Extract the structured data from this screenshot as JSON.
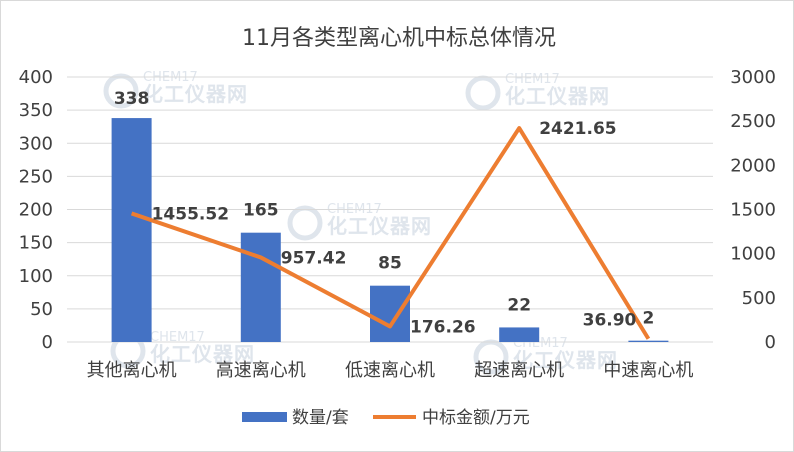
{
  "chart_data": {
    "type": "bar+line",
    "title": "11月各类型离心机中标总体情况",
    "categories": [
      "其他离心机",
      "高速离心机",
      "低速离心机",
      "超速离心机",
      "中速离心机"
    ],
    "series": [
      {
        "name": "数量/套",
        "type": "bar",
        "axis": "left",
        "color": "#4472c4",
        "values": [
          338,
          165,
          85,
          22,
          2
        ],
        "labels": [
          "338",
          "165",
          "85",
          "22",
          "2"
        ]
      },
      {
        "name": "中标金额/万元",
        "type": "line",
        "axis": "right",
        "color": "#ed7d31",
        "values": [
          1455.52,
          957.42,
          176.26,
          2421.65,
          36.9
        ],
        "labels": [
          "1455.52",
          "957.42",
          "176.26",
          "2421.65",
          "36.90"
        ]
      }
    ],
    "y_left": {
      "min": 0,
      "max": 400,
      "ticks": [
        "400",
        "350",
        "300",
        "250",
        "200",
        "150",
        "100",
        "50",
        "0"
      ]
    },
    "y_right": {
      "min": 0,
      "max": 3000,
      "ticks": [
        "3000",
        "2500",
        "2000",
        "1500",
        "1000",
        "500",
        "0"
      ]
    },
    "grid": true,
    "legend_position": "bottom"
  },
  "watermark": {
    "en": "CHEM17",
    "cn": "化工仪器网"
  }
}
